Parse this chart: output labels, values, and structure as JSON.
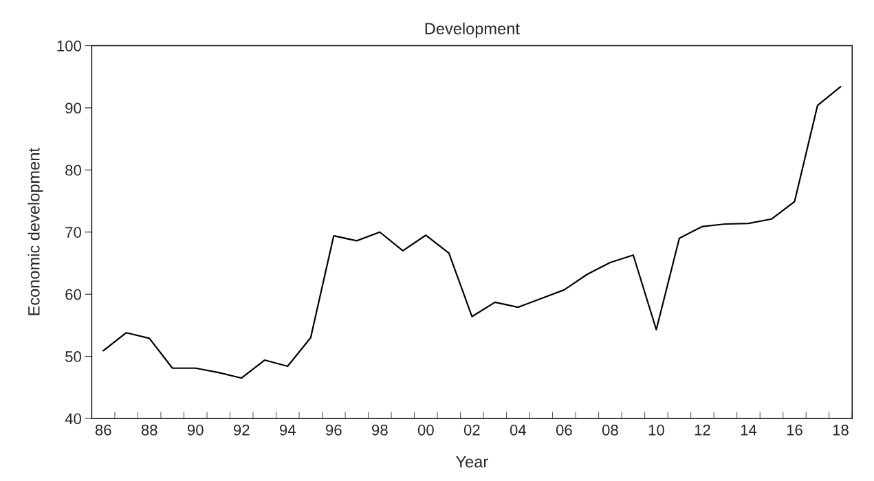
{
  "chart_data": {
    "type": "line",
    "title": "Development",
    "xlabel": "Year",
    "ylabel": "Economic development",
    "categories": [
      "86",
      null,
      "88",
      null,
      "90",
      null,
      "92",
      null,
      "94",
      null,
      "96",
      null,
      "98",
      null,
      "00",
      null,
      "02",
      null,
      "04",
      null,
      "06",
      null,
      "08",
      null,
      "10",
      null,
      "12",
      null,
      "14",
      null,
      "16",
      null,
      "18"
    ],
    "series": [
      {
        "color": "#000000",
        "values": [
          50.9,
          53.8,
          52.9,
          48.1,
          48.1,
          47.4,
          46.5,
          49.4,
          48.4,
          53.0,
          69.4,
          68.6,
          70.0,
          67.0,
          69.5,
          66.6,
          56.4,
          58.7,
          57.9,
          59.3,
          60.7,
          63.2,
          65.1,
          66.3,
          54.3,
          69.0,
          70.9,
          71.3,
          71.4,
          72.1,
          74.9,
          90.4,
          93.4
        ]
      }
    ],
    "ylim": [
      40,
      100
    ],
    "yticks": [
      40,
      50,
      60,
      70,
      80,
      90,
      100
    ],
    "marker": "none",
    "line_style": "solid"
  }
}
